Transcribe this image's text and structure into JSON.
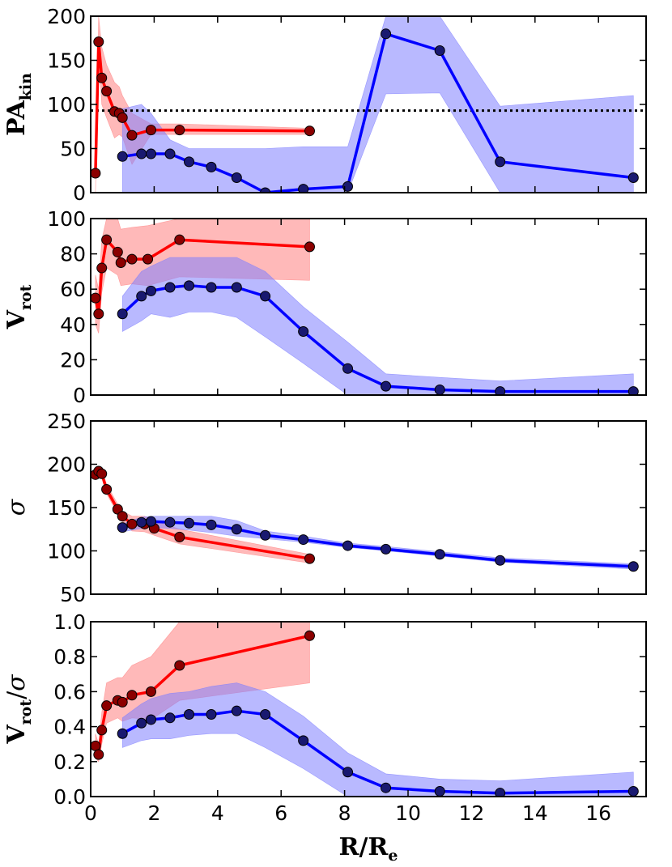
{
  "chart_data": [
    {
      "type": "line",
      "ylabel": "PA",
      "ylabel_sub": "kin",
      "ylabel_sigma": "",
      "ylim": [
        0,
        200
      ],
      "yticks": [
        0,
        50,
        100,
        150,
        200
      ],
      "xlim": [
        0,
        17.5
      ],
      "xticks": [
        0,
        2,
        4,
        6,
        8,
        10,
        12,
        14,
        16
      ],
      "show_xticklabels": false,
      "reference_line": 93,
      "series": [
        {
          "name": "red",
          "line_color": "#ff0000",
          "marker_color": "#8b0000",
          "band_color": "#ff8080",
          "x": [
            0.15,
            0.25,
            0.35,
            0.5,
            0.75,
            0.9,
            1.0,
            1.3,
            1.9,
            2.8,
            6.9
          ],
          "y": [
            22,
            171,
            130,
            115,
            92,
            90,
            85,
            65,
            71,
            71,
            70
          ],
          "band_x": [
            0.15,
            0.25,
            0.35,
            0.5,
            0.75,
            0.9,
            1.0,
            1.3,
            1.9,
            2.8,
            6.9
          ],
          "band_lo": [
            0,
            158,
            100,
            85,
            62,
            66,
            63,
            32,
            66,
            66,
            66
          ],
          "band_hi": [
            0,
            200,
            165,
            145,
            125,
            120,
            110,
            90,
            78,
            78,
            73
          ]
        },
        {
          "name": "blue",
          "line_color": "#0000ff",
          "marker_color": "#191970",
          "band_color": "#7f7fff",
          "x": [
            1.0,
            1.6,
            1.9,
            2.5,
            3.1,
            3.8,
            4.6,
            5.5,
            6.7,
            8.1,
            9.3,
            11.0,
            12.9,
            17.1
          ],
          "y": [
            41,
            44,
            44,
            44,
            35,
            29,
            17,
            0,
            4,
            7,
            180,
            161,
            35,
            17
          ],
          "band_x": [
            1.0,
            1.6,
            1.9,
            2.5,
            3.1,
            3.8,
            4.6,
            5.5,
            6.7,
            8.1,
            9.3,
            11.0,
            12.9,
            17.1
          ],
          "band_lo": [
            0,
            0,
            0,
            0,
            0,
            0,
            0,
            0,
            0,
            0,
            112,
            113,
            0,
            0
          ],
          "band_hi": [
            95,
            100,
            90,
            60,
            50,
            50,
            50,
            50,
            52,
            52,
            200,
            200,
            98,
            110
          ]
        }
      ]
    },
    {
      "type": "line",
      "ylabel": "V",
      "ylabel_sub": "rot",
      "ylabel_sigma": "",
      "ylim": [
        0,
        100
      ],
      "yticks": [
        0,
        20,
        40,
        60,
        80,
        100
      ],
      "xlim": [
        0,
        17.5
      ],
      "xticks": [
        0,
        2,
        4,
        6,
        8,
        10,
        12,
        14,
        16
      ],
      "show_xticklabels": false,
      "series": [
        {
          "name": "red",
          "line_color": "#ff0000",
          "marker_color": "#8b0000",
          "band_color": "#ff8080",
          "x": [
            0.15,
            0.25,
            0.35,
            0.5,
            0.85,
            0.95,
            1.3,
            1.8,
            2.8,
            6.9
          ],
          "y": [
            55,
            46,
            72,
            88,
            81,
            75,
            77,
            77,
            88,
            84
          ],
          "band_x": [
            0.15,
            0.25,
            0.35,
            0.5,
            0.85,
            0.95,
            1.3,
            1.8,
            2.8,
            6.9
          ],
          "band_lo": [
            40,
            35,
            58,
            72,
            68,
            62,
            63,
            62,
            67,
            65
          ],
          "band_hi": [
            68,
            60,
            88,
            100,
            100,
            94,
            95,
            96,
            100,
            100
          ]
        },
        {
          "name": "blue",
          "line_color": "#0000ff",
          "marker_color": "#191970",
          "band_color": "#7f7fff",
          "x": [
            1.0,
            1.6,
            1.9,
            2.5,
            3.1,
            3.8,
            4.6,
            5.5,
            6.7,
            8.1,
            9.3,
            11.0,
            12.9,
            17.1
          ],
          "y": [
            46,
            56,
            59,
            61,
            62,
            61,
            61,
            56,
            36,
            15,
            5,
            3,
            2,
            2
          ],
          "band_x": [
            1.0,
            1.6,
            1.9,
            2.5,
            3.1,
            3.8,
            4.6,
            5.5,
            6.7,
            8.1,
            9.3,
            11.0,
            12.9,
            17.1
          ],
          "band_lo": [
            36,
            42,
            46,
            44,
            47,
            47,
            44,
            33,
            18,
            0,
            0,
            0,
            0,
            0
          ],
          "band_hi": [
            56,
            70,
            73,
            78,
            78,
            78,
            78,
            70,
            50,
            30,
            12,
            10,
            8,
            12
          ]
        }
      ]
    },
    {
      "type": "line",
      "ylabel": "",
      "ylabel_sub": "",
      "ylabel_sigma": "σ",
      "ylim": [
        50,
        250
      ],
      "yticks": [
        50,
        100,
        150,
        200,
        250
      ],
      "xlim": [
        0,
        17.5
      ],
      "xticks": [
        0,
        2,
        4,
        6,
        8,
        10,
        12,
        14,
        16
      ],
      "show_xticklabels": false,
      "series": [
        {
          "name": "red",
          "line_color": "#ff0000",
          "marker_color": "#8b0000",
          "band_color": "#ff8080",
          "x": [
            0.15,
            0.25,
            0.35,
            0.5,
            0.85,
            1.0,
            1.3,
            1.7,
            2.0,
            2.8,
            6.9
          ],
          "y": [
            188,
            192,
            189,
            171,
            148,
            140,
            131,
            131,
            126,
            116,
            91
          ],
          "band_x": [
            0.15,
            0.25,
            0.35,
            0.5,
            0.85,
            1.0,
            1.3,
            1.7,
            2.0,
            2.8,
            6.9
          ],
          "band_lo": [
            184,
            188,
            185,
            166,
            143,
            134,
            123,
            122,
            118,
            108,
            86
          ],
          "band_hi": [
            193,
            197,
            194,
            177,
            154,
            146,
            140,
            140,
            135,
            125,
            96
          ]
        },
        {
          "name": "blue",
          "line_color": "#0000ff",
          "marker_color": "#191970",
          "band_color": "#7f7fff",
          "x": [
            1.0,
            1.6,
            1.9,
            2.5,
            3.1,
            3.8,
            4.6,
            5.5,
            6.7,
            8.1,
            9.3,
            11.0,
            12.9,
            17.1
          ],
          "y": [
            127,
            133,
            134,
            133,
            132,
            130,
            125,
            118,
            113,
            106,
            102,
            96,
            89,
            82
          ],
          "band_x": [
            1.0,
            1.6,
            1.9,
            2.5,
            3.1,
            3.8,
            4.6,
            5.5,
            6.7,
            8.1,
            9.3,
            11.0,
            12.9,
            17.1
          ],
          "band_lo": [
            122,
            126,
            127,
            126,
            124,
            121,
            117,
            114,
            110,
            104,
            100,
            94,
            87,
            79
          ],
          "band_hi": [
            131,
            139,
            140,
            140,
            140,
            140,
            135,
            123,
            117,
            109,
            105,
            99,
            92,
            85
          ]
        }
      ]
    },
    {
      "type": "line",
      "ylabel": "V",
      "ylabel_sub": "rot",
      "ylabel_sigma": "σ",
      "ylim": [
        0,
        1
      ],
      "yticks": [
        0.0,
        0.2,
        0.4,
        0.6,
        0.8,
        1.0
      ],
      "ytick_labels": [
        "0.0",
        "0.2",
        "0.4",
        "0.6",
        "0.8",
        "1.0"
      ],
      "xlim": [
        0,
        17.5
      ],
      "xticks": [
        0,
        2,
        4,
        6,
        8,
        10,
        12,
        14,
        16
      ],
      "show_xticklabels": true,
      "xlabel": "R/R",
      "xlabel_sub": "e",
      "series": [
        {
          "name": "red",
          "line_color": "#ff0000",
          "marker_color": "#8b0000",
          "band_color": "#ff8080",
          "x": [
            0.15,
            0.25,
            0.35,
            0.5,
            0.85,
            1.0,
            1.3,
            1.9,
            2.8,
            6.9
          ],
          "y": [
            0.29,
            0.24,
            0.38,
            0.52,
            0.55,
            0.54,
            0.58,
            0.6,
            0.75,
            0.92
          ],
          "band_x": [
            0.15,
            0.25,
            0.35,
            0.5,
            0.85,
            1.0,
            1.3,
            1.9,
            2.8,
            6.9
          ],
          "band_lo": [
            0.22,
            0.2,
            0.3,
            0.42,
            0.45,
            0.43,
            0.45,
            0.44,
            0.55,
            0.65
          ],
          "band_hi": [
            0.36,
            0.3,
            0.48,
            0.65,
            0.68,
            0.68,
            0.75,
            0.8,
            1.0,
            1.0
          ]
        },
        {
          "name": "blue",
          "line_color": "#0000ff",
          "marker_color": "#191970",
          "band_color": "#7f7fff",
          "x": [
            1.0,
            1.6,
            1.9,
            2.5,
            3.1,
            3.8,
            4.6,
            5.5,
            6.7,
            8.1,
            9.3,
            11.0,
            12.9,
            17.1
          ],
          "y": [
            0.36,
            0.42,
            0.44,
            0.45,
            0.47,
            0.47,
            0.49,
            0.47,
            0.32,
            0.14,
            0.05,
            0.03,
            0.02,
            0.03
          ],
          "band_x": [
            1.0,
            1.6,
            1.9,
            2.5,
            3.1,
            3.8,
            4.6,
            5.5,
            6.7,
            8.1,
            9.3,
            11.0,
            12.9,
            17.1
          ],
          "band_lo": [
            0.28,
            0.32,
            0.33,
            0.33,
            0.35,
            0.36,
            0.36,
            0.28,
            0.16,
            0.0,
            0.0,
            0.0,
            0.0,
            0.0
          ],
          "band_hi": [
            0.45,
            0.53,
            0.56,
            0.59,
            0.6,
            0.63,
            0.65,
            0.6,
            0.46,
            0.25,
            0.13,
            0.1,
            0.09,
            0.14
          ]
        }
      ]
    }
  ]
}
